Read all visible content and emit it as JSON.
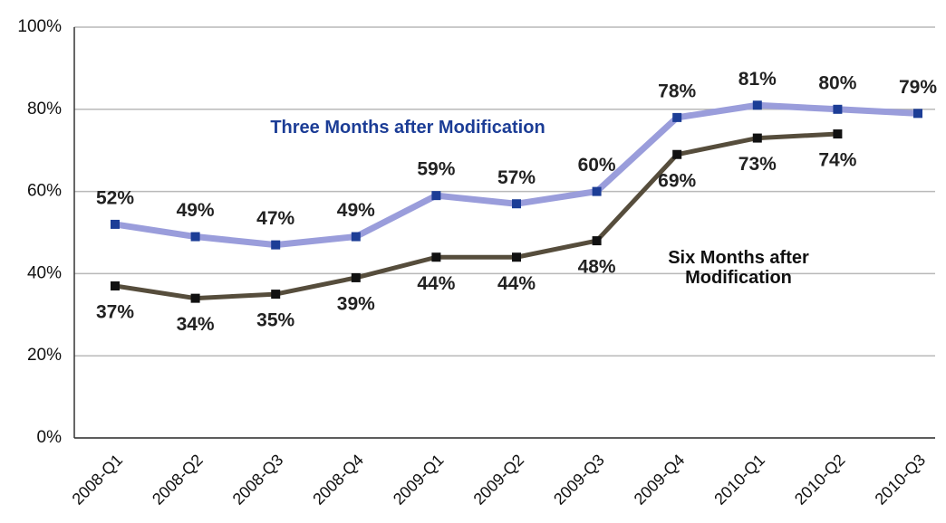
{
  "chart_data": {
    "type": "line",
    "categories": [
      "2008-Q1",
      "2008-Q2",
      "2008-Q3",
      "2008-Q4",
      "2009-Q1",
      "2009-Q2",
      "2009-Q3",
      "2009-Q4",
      "2010-Q1",
      "2010-Q2",
      "2010-Q3"
    ],
    "series": [
      {
        "name": "Three Months after Modification",
        "color": "#9a9ddb",
        "marker_color": "#1c3d96",
        "label_color": "#1c3d96",
        "values": [
          52,
          49,
          47,
          49,
          59,
          57,
          60,
          78,
          81,
          80,
          79
        ],
        "value_labels": [
          "52%",
          "49%",
          "47%",
          "49%",
          "59%",
          "57%",
          "60%",
          "78%",
          "81%",
          "80%",
          "79%"
        ]
      },
      {
        "name": "Six Months after Modification",
        "color": "#564d3c",
        "marker_color": "#111111",
        "label_color": "#111111",
        "values": [
          37,
          34,
          35,
          39,
          44,
          44,
          48,
          69,
          73,
          74,
          null
        ],
        "value_labels": [
          "37%",
          "34%",
          "35%",
          "39%",
          "44%",
          "44%",
          "48%",
          "69%",
          "73%",
          "74%",
          null
        ]
      }
    ],
    "ylim": [
      0,
      100
    ],
    "yticks": [
      {
        "value": 0,
        "label": "0%"
      },
      {
        "value": 20,
        "label": "20%"
      },
      {
        "value": 40,
        "label": "40%"
      },
      {
        "value": 60,
        "label": "60%"
      },
      {
        "value": 80,
        "label": "80%"
      },
      {
        "value": 100,
        "label": "100%"
      }
    ],
    "grid": true
  }
}
